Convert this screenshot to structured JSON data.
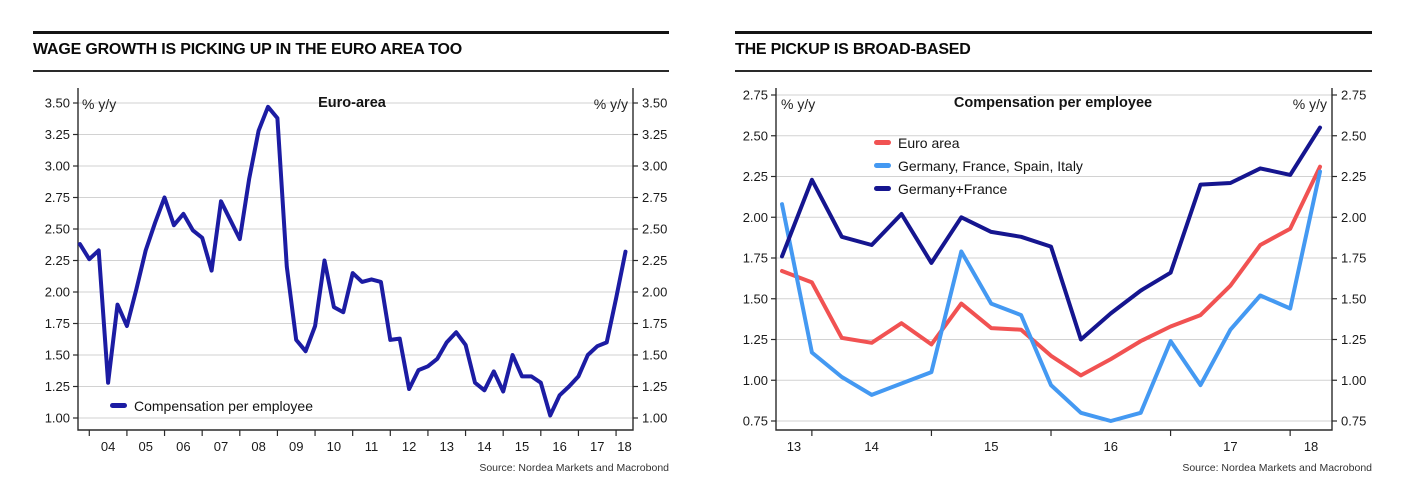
{
  "source_credit": "Source: Nordea Markets and Macrobond",
  "chart_data": [
    {
      "type": "line",
      "title": "WAGE GROWTH IS PICKING UP IN THE EURO AREA TOO",
      "inner_title": "Euro-area",
      "unit_label": "% y/y",
      "source": "Source: Nordea Markets and Macrobond",
      "grid": true,
      "legend_position": "bottom-left-inside",
      "ylim": [
        1.0,
        3.5
      ],
      "ytick_step": 0.25,
      "ytick_labels": [
        "3.50",
        "3.25",
        "3.00",
        "2.75",
        "2.50",
        "2.25",
        "2.00",
        "1.75",
        "1.50",
        "1.25",
        "1.00"
      ],
      "xtick_labels": [
        "04",
        "05",
        "06",
        "07",
        "08",
        "09",
        "10",
        "11",
        "12",
        "13",
        "14",
        "15",
        "16",
        "17",
        "18"
      ],
      "xlim": [
        2003.7,
        2018.45
      ],
      "series": [
        {
          "name": "Compensation per employee",
          "color": "#1c1ca3",
          "x": [
            2003.75,
            2004,
            2004.25,
            2004.5,
            2004.75,
            2005,
            2005.25,
            2005.5,
            2005.75,
            2006,
            2006.25,
            2006.5,
            2006.75,
            2007,
            2007.25,
            2007.5,
            2007.75,
            2008,
            2008.25,
            2008.5,
            2008.75,
            2009,
            2009.25,
            2009.5,
            2009.75,
            2010,
            2010.25,
            2010.5,
            2010.75,
            2011,
            2011.25,
            2011.5,
            2011.75,
            2012,
            2012.25,
            2012.5,
            2012.75,
            2013,
            2013.25,
            2013.5,
            2013.75,
            2014,
            2014.25,
            2014.5,
            2014.75,
            2015,
            2015.25,
            2015.5,
            2015.75,
            2016,
            2016.25,
            2016.5,
            2016.75,
            2017,
            2017.25,
            2017.5,
            2017.75,
            2018,
            2018.25
          ],
          "values": [
            2.38,
            2.26,
            2.33,
            1.28,
            1.9,
            1.73,
            2.02,
            2.33,
            2.55,
            2.75,
            2.53,
            2.62,
            2.49,
            2.43,
            2.17,
            2.72,
            2.57,
            2.42,
            2.9,
            3.28,
            3.47,
            3.38,
            2.2,
            1.62,
            1.53,
            1.73,
            2.25,
            1.88,
            1.84,
            2.15,
            2.08,
            2.1,
            2.08,
            1.62,
            1.63,
            1.23,
            1.38,
            1.41,
            1.47,
            1.6,
            1.68,
            1.58,
            1.28,
            1.22,
            1.37,
            1.21,
            1.5,
            1.33,
            1.33,
            1.28,
            1.02,
            1.18,
            1.25,
            1.33,
            1.5,
            1.57,
            1.6,
            1.95,
            2.32
          ]
        }
      ]
    },
    {
      "type": "line",
      "title": "THE PICKUP IS BROAD-BASED",
      "inner_title": "Compensation per employee",
      "unit_label": "% y/y",
      "source": "Source: Nordea Markets and Macrobond",
      "grid": true,
      "legend_position": "top-center-inside",
      "ylim": [
        0.75,
        2.75
      ],
      "ytick_step": 0.25,
      "ytick_labels": [
        "2.75",
        "2.50",
        "2.25",
        "2.00",
        "1.75",
        "1.50",
        "1.25",
        "1.00",
        "0.75"
      ],
      "xtick_labels": [
        "13",
        "14",
        "15",
        "16",
        "17",
        "18"
      ],
      "xlim": [
        2013.7,
        2018.35
      ],
      "series": [
        {
          "name": "Euro area",
          "color": "#f15252",
          "x": [
            2013.75,
            2014,
            2014.25,
            2014.5,
            2014.75,
            2015,
            2015.25,
            2015.5,
            2015.75,
            2016,
            2016.25,
            2016.5,
            2016.75,
            2017,
            2017.25,
            2017.5,
            2017.75,
            2018,
            2018.25
          ],
          "values": [
            1.67,
            1.6,
            1.26,
            1.23,
            1.35,
            1.22,
            1.47,
            1.32,
            1.31,
            1.15,
            1.03,
            1.13,
            1.24,
            1.33,
            1.4,
            1.58,
            1.83,
            1.93,
            2.31
          ]
        },
        {
          "name": "Germany, France, Spain, Italy",
          "color": "#4499f2",
          "x": [
            2013.75,
            2014,
            2014.25,
            2014.5,
            2014.75,
            2015,
            2015.25,
            2015.5,
            2015.75,
            2016,
            2016.25,
            2016.5,
            2016.75,
            2017,
            2017.25,
            2017.5,
            2017.75,
            2018,
            2018.25
          ],
          "values": [
            2.08,
            1.17,
            1.02,
            0.91,
            0.98,
            1.05,
            1.79,
            1.47,
            1.4,
            0.97,
            0.8,
            0.75,
            0.8,
            1.24,
            0.97,
            1.31,
            1.52,
            1.44,
            2.28
          ]
        },
        {
          "name": "Germany+France",
          "color": "#15158f",
          "x": [
            2013.75,
            2014,
            2014.25,
            2014.5,
            2014.75,
            2015,
            2015.25,
            2015.5,
            2015.75,
            2016,
            2016.25,
            2016.5,
            2016.75,
            2017,
            2017.25,
            2017.5,
            2017.75,
            2018,
            2018.25
          ],
          "values": [
            1.76,
            2.23,
            1.88,
            1.83,
            2.02,
            1.72,
            2.0,
            1.91,
            1.88,
            1.82,
            1.25,
            1.41,
            1.55,
            1.66,
            2.2,
            2.21,
            2.3,
            2.26,
            2.55
          ]
        }
      ]
    }
  ]
}
